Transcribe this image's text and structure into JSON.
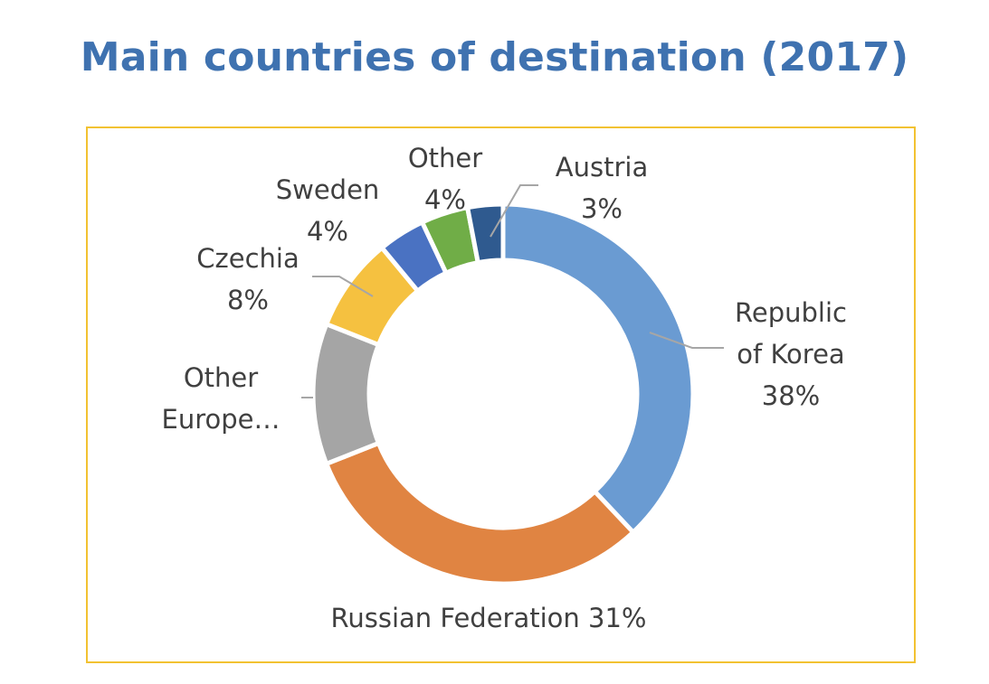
{
  "chart_data": {
    "type": "donut",
    "title": "Main countries of destination (2017)",
    "slices": [
      {
        "name": "Republic of Korea",
        "label_lines": [
          "Republic",
          "of Korea",
          "38%"
        ],
        "value": 38,
        "color": "#6a9bd2"
      },
      {
        "name": "Russian Federation",
        "label_lines": [
          "Russian Federation 31%"
        ],
        "value": 31,
        "color": "#e08442"
      },
      {
        "name": "Other Europe…",
        "label_lines": [
          "Other",
          "Europe…"
        ],
        "value": 12,
        "color": "#a5a5a5"
      },
      {
        "name": "Czechia",
        "label_lines": [
          "Czechia",
          "8%"
        ],
        "value": 8,
        "color": "#f5c140"
      },
      {
        "name": "Sweden",
        "label_lines": [
          "Sweden",
          "4%"
        ],
        "value": 4,
        "color": "#4a72c2"
      },
      {
        "name": "Other",
        "label_lines": [
          "Other",
          "4%"
        ],
        "value": 4,
        "color": "#70ad47"
      },
      {
        "name": "Austria",
        "label_lines": [
          "Austria",
          "3%"
        ],
        "value": 3,
        "color": "#2f5a8f"
      }
    ]
  }
}
